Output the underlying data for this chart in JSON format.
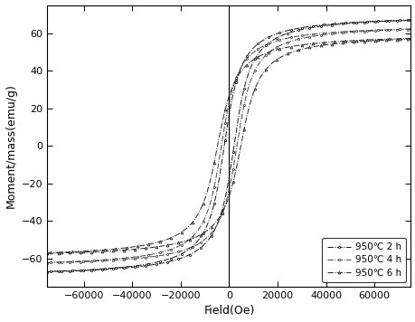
{
  "title": "",
  "xlabel": "Field(Oe)",
  "ylabel": "Moment/mass(emu/g)",
  "xlim": [
    -75000,
    75000
  ],
  "ylim": [
    -75,
    75
  ],
  "yticks": [
    -60,
    -40,
    -20,
    0,
    20,
    40,
    60
  ],
  "xticks": [
    -60000,
    -40000,
    -20000,
    0,
    20000,
    40000,
    60000
  ],
  "series": [
    {
      "label": "950℃ 2 h",
      "Ms": 70,
      "Hc": 2000,
      "k_scale": 8000,
      "style": "-.",
      "marker": "o",
      "marker_size": 1.5,
      "color": "#111111"
    },
    {
      "label": "950℃ 4 h",
      "Ms": 65,
      "Hc": 3200,
      "k_scale": 8000,
      "style": "-.",
      "marker": "o",
      "marker_size": 1.5,
      "color": "#444444"
    },
    {
      "label": "950℃ 6 h",
      "Ms": 60,
      "Hc": 4800,
      "k_scale": 9000,
      "style": "-.",
      "marker": "^",
      "marker_size": 2.0,
      "color": "#222222"
    }
  ],
  "vline_color": "#000000",
  "background_color": "#ffffff",
  "legend_loc": "lower right",
  "figure_width": 4.6,
  "figure_height": 3.56,
  "dpi": 100
}
